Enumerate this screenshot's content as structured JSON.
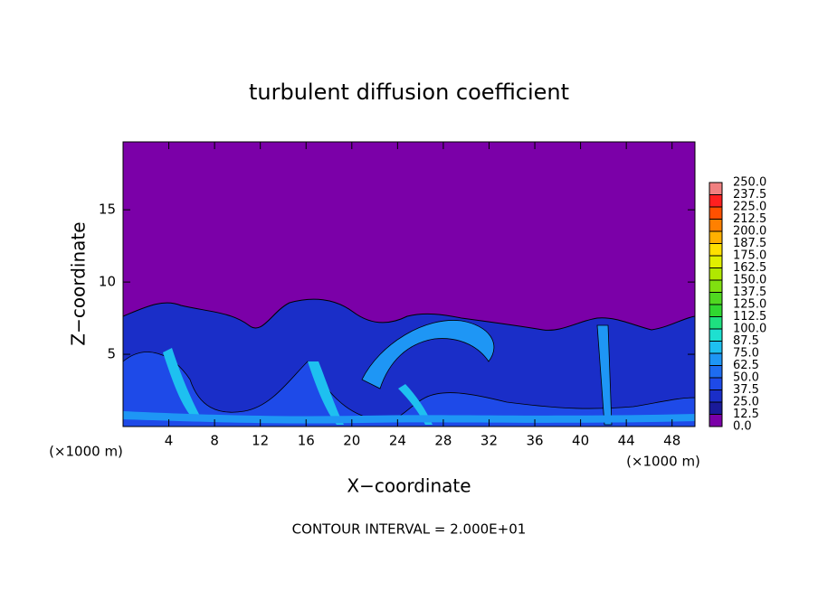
{
  "chart_data": {
    "type": "contour",
    "title": "turbulent diffusion coefficient",
    "x_label": "X−coordinate",
    "y_label": "Z−coordinate",
    "x_unit": "(×1000 m)",
    "y_unit": "(×1000 m)",
    "note": "CONTOUR INTERVAL = 2.000E+01",
    "xlim": [
      0,
      50
    ],
    "ylim": [
      0,
      19.7
    ],
    "xticks": [
      4,
      8,
      12,
      16,
      20,
      24,
      28,
      32,
      36,
      40,
      44,
      48
    ],
    "yticks": [
      5,
      10,
      15
    ],
    "colorbar": {
      "levels": [
        {
          "value": 0,
          "label": "0.0"
        },
        {
          "value": 12.5,
          "label": "12.5"
        },
        {
          "value": 25,
          "label": "25.0"
        },
        {
          "value": 37.5,
          "label": "37.5"
        },
        {
          "value": 50,
          "label": "50.0"
        },
        {
          "value": 62.5,
          "label": "62.5"
        },
        {
          "value": 75,
          "label": "75.0"
        },
        {
          "value": 87.5,
          "label": "87.5"
        },
        {
          "value": 100,
          "label": "100.0"
        },
        {
          "value": 112.5,
          "label": "112.5"
        },
        {
          "value": 125,
          "label": "125.0"
        },
        {
          "value": 137.5,
          "label": "137.5"
        },
        {
          "value": 150,
          "label": "150.0"
        },
        {
          "value": 162.5,
          "label": "162.5"
        },
        {
          "value": 175,
          "label": "175.0"
        },
        {
          "value": 187.5,
          "label": "187.5"
        },
        {
          "value": 200,
          "label": "200.0"
        },
        {
          "value": 212.5,
          "label": "212.5"
        },
        {
          "value": 225,
          "label": "225.0"
        },
        {
          "value": 237.5,
          "label": "237.5"
        },
        {
          "value": 250,
          "label": "250.0"
        }
      ],
      "colors": [
        "#7b00a8",
        "#1a1a9a",
        "#1a2ec8",
        "#1e4ae8",
        "#1e6cf0",
        "#1e96f5",
        "#1ec0f0",
        "#1ee0d0",
        "#1ee080",
        "#30d830",
        "#50d820",
        "#80e010",
        "#b0e800",
        "#e0f000",
        "#ffe000",
        "#ffb000",
        "#ff8000",
        "#ff5000",
        "#ff2020",
        "#f08080"
      ]
    }
  }
}
